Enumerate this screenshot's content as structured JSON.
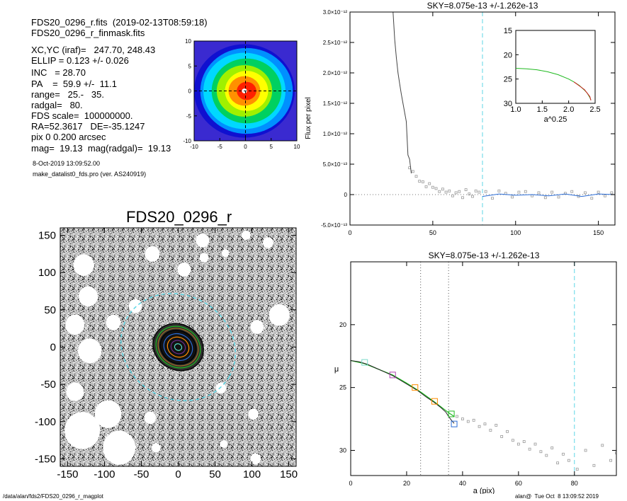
{
  "header": {
    "lines": [
      "FDS20_0296_r.fits  (2019-02-13T08:59:18)",
      "FDS20_0296_r_finmask.fits"
    ],
    "params": [
      "XC,YC (iraf)=   247.70, 248.43",
      "ELLIP = 0.123 +/- 0.026",
      "INC   = 28.70",
      "PA    =  59.9 +/-  11.1",
      "range=   25.-   35.",
      "radgal=   80.",
      "FDS scale=  100000000.",
      "RA=52.3617   DE=-35.1247",
      "pix 0 0.200 arcsec",
      "mag=  19.13  mag(radgal)=  19.13"
    ],
    "date": "8-Oct-2019 13:09:52.00",
    "program": "make_datalist0_fds.pro (ver. AS240919)"
  },
  "footer": {
    "path": "/data/alan/fds2/FDS20_0296_r_magplot",
    "user": "alan@  Tue Oct  8 13:09:52 2019"
  },
  "colors": {
    "model": "#1fb91f",
    "profile": "#000000",
    "points": "#999999",
    "sky_line": "#5cd6e6",
    "range_line": "#555555",
    "error": "#d02020",
    "contour_palette": [
      "#1010d0",
      "#0090ff",
      "#00d8ff",
      "#00d060",
      "#a0f000",
      "#ffff00",
      "#ff9000",
      "#ff2000",
      "#ffffff"
    ]
  },
  "chart_data": [
    {
      "type": "heatmap",
      "title": "",
      "description": "Contour thumbnail of the galaxy centre",
      "x_ticks": [
        -10,
        -5,
        0,
        5,
        10
      ],
      "y_ticks": [
        -10,
        -5,
        0,
        5,
        10
      ],
      "xlim": [
        -10,
        10
      ],
      "ylim": [
        -10,
        10
      ],
      "levels": [
        {
          "radius": 9.8,
          "color": "#1010d0"
        },
        {
          "radius": 9.0,
          "color": "#0090ff"
        },
        {
          "radius": 8.0,
          "color": "#00d8ff"
        },
        {
          "radius": 6.8,
          "color": "#00d060"
        },
        {
          "radius": 5.4,
          "color": "#a0f000"
        },
        {
          "radius": 4.2,
          "color": "#ffff00"
        },
        {
          "radius": 3.1,
          "color": "#ff9000"
        },
        {
          "radius": 1.9,
          "color": "#ff2000"
        },
        {
          "radius": 0.5,
          "color": "#ffffff"
        }
      ]
    },
    {
      "type": "scatter",
      "title": "FDS20_0296_r",
      "description": "Masked image with fitted isophotes",
      "x_ticks": [
        -150,
        -100,
        -50,
        0,
        50,
        100,
        150
      ],
      "y_ticks": [
        -150,
        -100,
        -50,
        0,
        50,
        100,
        150
      ],
      "xlim": [
        -160,
        160
      ],
      "ylim": [
        -160,
        160
      ],
      "isophotes": [
        {
          "a": 5,
          "color": "#1fb91f"
        },
        {
          "a": 10,
          "color": "#6a2a8a"
        },
        {
          "a": 15,
          "color": "#ff8c00"
        },
        {
          "a": 20,
          "color": "#2a6cd6"
        },
        {
          "a": 25,
          "color": "#000000"
        },
        {
          "a": 28,
          "color": "#a07020"
        },
        {
          "a": 31,
          "color": "#1fb91f"
        },
        {
          "a": 35,
          "color": "#000000"
        }
      ],
      "sky_ellipse_a": 80,
      "ellipticity": 0.123,
      "pa": 59.9,
      "masks": [
        {
          "x": -128,
          "y": 110,
          "r": 14
        },
        {
          "x": -35,
          "y": 125,
          "r": 10
        },
        {
          "x": 33,
          "y": 143,
          "r": 9
        },
        {
          "x": 35,
          "y": 120,
          "r": 6
        },
        {
          "x": 64,
          "y": 126,
          "r": 5
        },
        {
          "x": 92,
          "y": 150,
          "r": 6
        },
        {
          "x": 122,
          "y": 140,
          "r": 7
        },
        {
          "x": 8,
          "y": 104,
          "r": 9
        },
        {
          "x": -122,
          "y": 68,
          "r": 13
        },
        {
          "x": -140,
          "y": 30,
          "r": 13
        },
        {
          "x": -120,
          "y": -5,
          "r": 16
        },
        {
          "x": -88,
          "y": 33,
          "r": 10
        },
        {
          "x": -58,
          "y": 55,
          "r": 9
        },
        {
          "x": 137,
          "y": 43,
          "r": 14
        },
        {
          "x": 107,
          "y": 27,
          "r": 9
        },
        {
          "x": -130,
          "y": -112,
          "r": 24
        },
        {
          "x": -95,
          "y": -90,
          "r": 18
        },
        {
          "x": -80,
          "y": -135,
          "r": 22
        },
        {
          "x": -140,
          "y": -60,
          "r": 12
        },
        {
          "x": -38,
          "y": -95,
          "r": 8
        },
        {
          "x": -30,
          "y": -135,
          "r": 6
        },
        {
          "x": 58,
          "y": -55,
          "r": 7
        },
        {
          "x": 102,
          "y": -90,
          "r": 7
        },
        {
          "x": 62,
          "y": -130,
          "r": 5
        },
        {
          "x": 105,
          "y": -150,
          "r": 7
        }
      ]
    },
    {
      "type": "line",
      "title": "SKY=8.075e-13 +/-1.262e-13",
      "ylabel": "Flux per pixel",
      "xlabel": "",
      "xlim": [
        0,
        160
      ],
      "ylim": [
        -5e-13,
        3e-12
      ],
      "x_ticks": [
        0,
        50,
        100,
        150
      ],
      "y_ticks": [
        {
          "value": 3e-12,
          "label": "3.0×10⁻¹²"
        },
        {
          "value": 2.5e-12,
          "label": "2.5×10⁻¹²"
        },
        {
          "value": 2e-12,
          "label": "2.0×10⁻¹²"
        },
        {
          "value": 1.5e-12,
          "label": "1.5×10⁻¹²"
        },
        {
          "value": 1e-12,
          "label": "1.0×10⁻¹²"
        },
        {
          "value": 5e-13,
          "label": "5.0×10⁻¹³"
        },
        {
          "value": 0,
          "label": "0"
        },
        {
          "value": -5e-13,
          "label": "-5.0×10⁻¹³"
        }
      ],
      "sky_x": 80,
      "profile": {
        "x": [
          26,
          27,
          28,
          29,
          30,
          31,
          32,
          33,
          34,
          35,
          36,
          37
        ],
        "y": [
          3e-12,
          2.55e-12,
          2.25e-12,
          2e-12,
          1.82e-12,
          1.65e-12,
          1.5e-12,
          1.35e-12,
          1.2e-12,
          6.5e-13,
          5.8e-13,
          3.5e-13
        ]
      },
      "points": {
        "x": [
          36,
          38,
          40,
          42,
          44,
          46,
          48,
          50,
          52,
          54,
          56,
          58,
          60,
          62,
          64,
          66,
          68,
          70,
          72,
          74,
          76,
          78,
          82,
          86,
          90,
          94,
          98,
          102,
          106,
          110,
          114,
          118,
          122,
          126,
          130,
          134,
          138,
          142,
          146,
          150,
          154,
          158
        ],
        "y": [
          4.4e-13,
          3.8e-13,
          3e-13,
          2.2e-13,
          2.1e-13,
          1.3e-13,
          1.8e-13,
          1.2e-13,
          1e-13,
          5e-14,
          9e-14,
          4e-14,
          6e-14,
          -2e-14,
          3e-14,
          5e-14,
          -5e-14,
          8e-14,
          1e-14,
          -3e-14,
          6e-14,
          4e-14,
          5e-14,
          -6e-14,
          6e-14,
          2e-14,
          -4e-14,
          4e-14,
          5e-14,
          -2e-14,
          3e-14,
          -5e-14,
          4e-14,
          -4e-14,
          2e-14,
          5e-14,
          -3e-14,
          3e-14,
          -6e-14,
          4e-14,
          -2e-14,
          3e-14
        ]
      },
      "sky_fit": {
        "x": [
          80,
          90,
          100,
          110,
          120,
          130,
          140,
          150,
          160
        ],
        "y": [
          -3e-14,
          1e-14,
          -1e-14,
          0,
          -2e-14,
          1e-14,
          -3e-14,
          1e-14,
          0
        ]
      },
      "inset": {
        "xlabel": "a^0.25",
        "xlim": [
          1.0,
          2.5
        ],
        "ylim": [
          30,
          15
        ],
        "x_ticks": [
          1.0,
          1.5,
          2.0,
          2.5
        ],
        "x_tick_labels": [
          "1.0",
          "1.5",
          "2.0",
          "2.5"
        ],
        "y_ticks": [
          15,
          20,
          25,
          30
        ],
        "model": {
          "x": [
            1.0,
            1.2,
            1.4,
            1.6,
            1.8,
            2.0,
            2.1,
            2.2,
            2.3,
            2.35,
            2.4,
            2.42
          ],
          "y": [
            22.8,
            22.9,
            23.1,
            23.5,
            24.1,
            25.0,
            25.6,
            26.3,
            27.3,
            27.9,
            28.8,
            29.3
          ]
        },
        "data": {
          "x": [
            2.1,
            2.2,
            2.3,
            2.35,
            2.4,
            2.42
          ],
          "y": [
            25.6,
            26.4,
            27.2,
            27.9,
            28.6,
            29.4
          ]
        }
      }
    },
    {
      "type": "line",
      "title": "SKY=8.075e-13 +/-1.262e-13",
      "xlabel": "a (pix)",
      "ylabel": "μ",
      "xlim": [
        0,
        95
      ],
      "ylim": [
        32,
        15
      ],
      "x_ticks": [
        0,
        20,
        40,
        60,
        80
      ],
      "y_ticks": [
        20,
        25,
        30
      ],
      "range_lines": [
        25,
        35
      ],
      "sky_x": 80,
      "profile": {
        "x": [
          0,
          3,
          6,
          9,
          12,
          15,
          18,
          21,
          24,
          27,
          30,
          32,
          34,
          35,
          36,
          37
        ],
        "y": [
          22.85,
          22.95,
          23.15,
          23.45,
          23.75,
          24.05,
          24.45,
          24.85,
          25.25,
          25.75,
          26.2,
          26.55,
          26.95,
          27.3,
          27.6,
          27.85
        ]
      },
      "model": {
        "x": [
          0,
          5,
          10,
          15,
          20,
          25,
          30,
          35,
          37
        ],
        "y": [
          22.85,
          23.1,
          23.55,
          24.0,
          24.65,
          25.35,
          26.15,
          27.0,
          27.3
        ]
      },
      "markers": [
        {
          "x": 5,
          "y": 23.0,
          "color": "#7ad9c9"
        },
        {
          "x": 15,
          "y": 24.0,
          "color": "#b040b0"
        },
        {
          "x": 23,
          "y": 25.0,
          "color": "#ff8c00"
        },
        {
          "x": 30,
          "y": 26.1,
          "color": "#ff8c00"
        },
        {
          "x": 36,
          "y": 27.1,
          "color": "#1fb91f"
        },
        {
          "x": 37,
          "y": 27.9,
          "color": "#2a6cd6"
        }
      ],
      "points": {
        "x": [
          38,
          40,
          42,
          44,
          46,
          48,
          50,
          52,
          54,
          56,
          58,
          60,
          62,
          64,
          66,
          68,
          70,
          72,
          74,
          76,
          78,
          81,
          84,
          87,
          90,
          93,
          95
        ],
        "y": [
          27.3,
          27.5,
          27.7,
          27.6,
          28.1,
          27.9,
          28.4,
          28.0,
          28.9,
          28.5,
          29.2,
          29.5,
          29.3,
          29.9,
          29.5,
          30.1,
          30.4,
          29.8,
          31.0,
          30.3,
          30.8,
          31.5,
          30.0,
          31.2,
          29.6,
          30.8,
          30.2
        ]
      }
    }
  ]
}
